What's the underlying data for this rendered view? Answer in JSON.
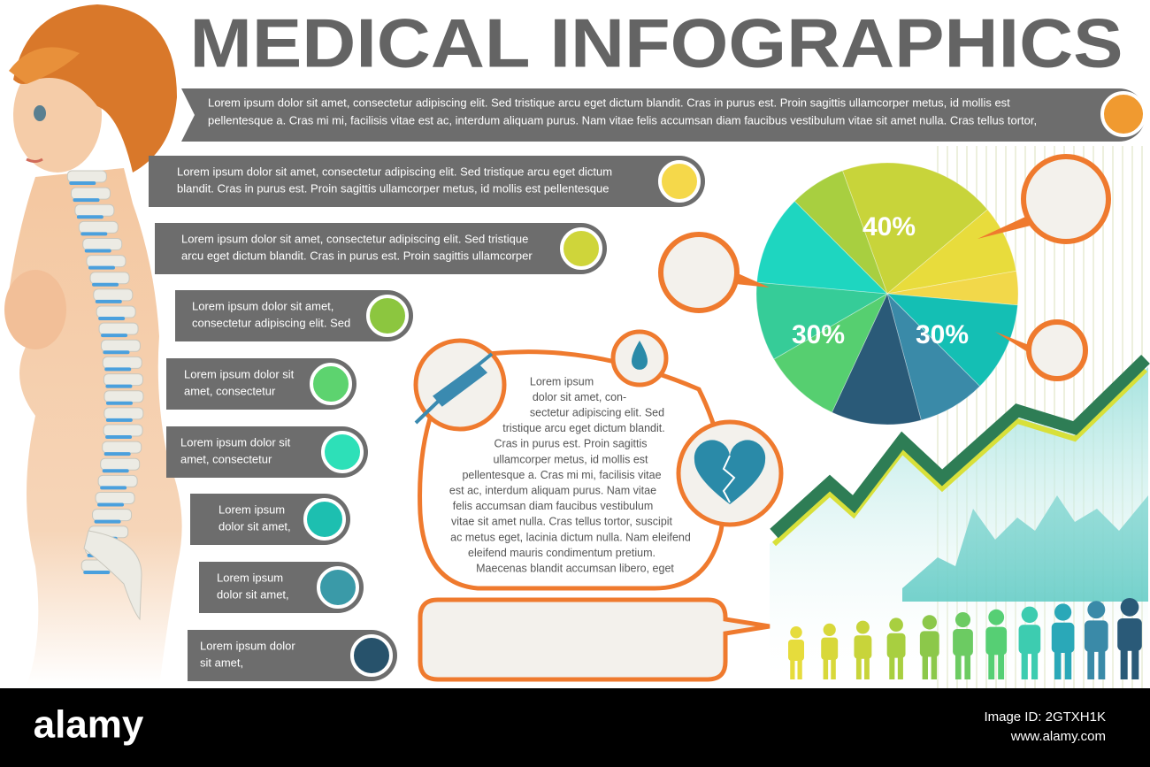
{
  "header": {
    "title": "MEDICAL INFOGRAPHICS"
  },
  "banner": {
    "lines": [
      "Lorem ipsum dolor sit amet, consectetur adipiscing elit. Sed tristique arcu eget dictum blandit. Cras in purus est. Proin sagittis ullamcorper metus, id mollis est",
      "pellentesque a. Cras mi mi, facilisis vitae est ac, interdum aliquam purus. Nam vitae felis accumsan diam faucibus vestibulum vitae sit amet nulla. Cras tellus tortor,"
    ]
  },
  "items": [
    {
      "lines": [
        "Lorem ipsum dolor sit amet, consectetur adipiscing elit. Sed tristique arcu eget dictum",
        "blandit. Cras in purus est. Proin sagittis ullamcorper metus, id mollis est pellentesque"
      ]
    },
    {
      "lines": [
        "Lorem ipsum dolor sit amet, consectetur adipiscing elit. Sed tristique",
        "arcu eget dictum blandit. Cras in purus est. Proin sagittis ullamcorper"
      ]
    },
    {
      "lines": [
        "Lorem ipsum dolor sit amet,",
        "consectetur adipiscing elit. Sed"
      ]
    },
    {
      "lines": [
        "Lorem ipsum dolor sit",
        "amet, consectetur"
      ]
    },
    {
      "lines": [
        "Lorem ipsum dolor sit",
        "amet, consectetur"
      ]
    },
    {
      "lines": [
        "Lorem ipsum",
        "dolor sit amet,"
      ]
    },
    {
      "lines": [
        "Lorem ipsum",
        "dolor sit amet,"
      ]
    },
    {
      "lines": [
        "Lorem ipsum dolor",
        "sit amet,"
      ]
    }
  ],
  "paragraph": {
    "lines": [
      "Lorem ipsum",
      "dolor sit amet, con-",
      "sectetur adipiscing elit. Sed",
      "tristique arcu eget dictum blandit.",
      "Cras in purus est. Proin sagittis",
      "ullamcorper metus, id mollis est",
      "pellentesque a. Cras mi mi, facilisis vitae",
      "est ac, interdum aliquam purus. Nam vitae",
      "felis accumsan diam faucibus vestibulum",
      "vitae sit amet nulla. Cras tellus tortor, suscipit",
      "ac metus eget, lacinia dictum nulla. Nam eleifend",
      "eleifend mauris condimentum pretium.",
      "Maecenas blandit accumsan libero, eget"
    ]
  },
  "pie": {
    "labels": [
      "40%",
      "30%",
      "30%"
    ]
  },
  "footer": {
    "logo": "alamy",
    "image_id": "Image ID: 2GTXH1K",
    "url": "www.alamy.com"
  }
}
